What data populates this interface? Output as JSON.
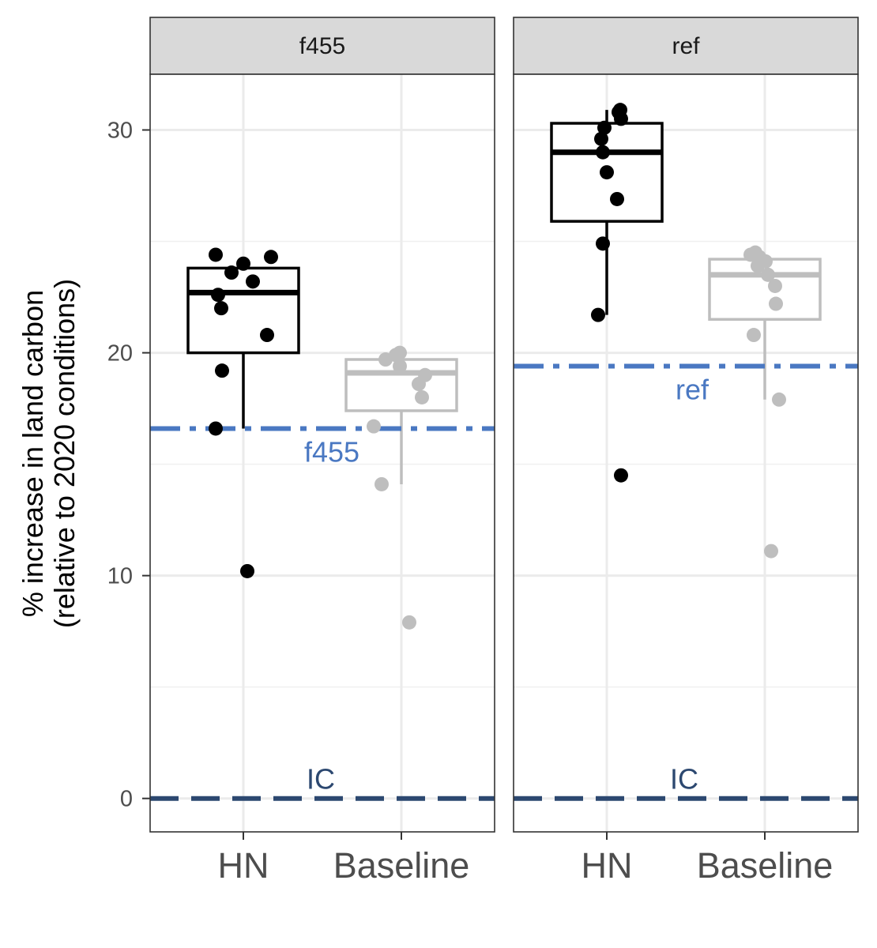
{
  "chart_data": {
    "type": "box",
    "facets": [
      "f455",
      "ref"
    ],
    "categories": [
      "HN",
      "Baseline"
    ],
    "ylabel_line1": "% increase in land carbon",
    "ylabel_line2": "(relative to 2020 conditions)",
    "yticks": [
      0,
      10,
      20,
      30
    ],
    "ylim": [
      -1.5,
      32.5
    ],
    "grid": true,
    "colors": {
      "HN": "#000000",
      "Baseline": "#bebebe",
      "reference_line": "#4a78c2",
      "ic_line": "#2c4870"
    },
    "panels": [
      {
        "facet": "f455",
        "reference": {
          "label": "f455",
          "value": 16.6
        },
        "ic": {
          "label": "IC",
          "value": 0
        },
        "groups": [
          {
            "category": "HN",
            "box": {
              "whisker_low": 16.6,
              "q1": 20.0,
              "median": 22.7,
              "q3": 23.8,
              "whisker_high": 24.3
            },
            "points": [
              24.4,
              24.3,
              24.0,
              23.6,
              23.2,
              22.6,
              22.0,
              20.8,
              19.2,
              16.6,
              10.2
            ],
            "jitter": [
              -0.35,
              0.35,
              0.0,
              -0.15,
              0.12,
              -0.32,
              -0.28,
              0.3,
              -0.27,
              -0.35,
              0.05
            ]
          },
          {
            "category": "Baseline",
            "box": {
              "whisker_low": 14.1,
              "q1": 17.4,
              "median": 19.1,
              "q3": 19.7,
              "whisker_high": 20.0
            },
            "points": [
              20.0,
              19.9,
              19.7,
              19.4,
              19.0,
              18.6,
              18.0,
              16.7,
              14.1,
              7.9
            ],
            "jitter": [
              -0.02,
              -0.07,
              -0.2,
              -0.02,
              0.3,
              0.22,
              0.26,
              -0.35,
              -0.25,
              0.1
            ]
          }
        ]
      },
      {
        "facet": "ref",
        "reference": {
          "label": "ref",
          "value": 19.4
        },
        "ic": {
          "label": "IC",
          "value": 0
        },
        "groups": [
          {
            "category": "HN",
            "box": {
              "whisker_low": 21.7,
              "q1": 25.9,
              "median": 29.0,
              "q3": 30.3,
              "whisker_high": 30.9
            },
            "points": [
              30.9,
              30.8,
              30.5,
              30.1,
              29.6,
              29.0,
              28.1,
              26.9,
              24.9,
              21.7,
              14.5
            ],
            "jitter": [
              0.17,
              0.15,
              0.18,
              -0.03,
              -0.07,
              -0.05,
              0.0,
              0.13,
              -0.05,
              -0.11,
              0.18
            ]
          },
          {
            "category": "Baseline",
            "box": {
              "whisker_low": 17.9,
              "q1": 21.5,
              "median": 23.5,
              "q3": 24.2,
              "whisker_high": 24.4
            },
            "points": [
              24.5,
              24.4,
              24.3,
              24.1,
              23.9,
              23.5,
              23.0,
              22.2,
              20.8,
              17.9,
              11.1
            ],
            "jitter": [
              -0.12,
              -0.18,
              -0.07,
              0.01,
              -0.09,
              0.04,
              0.13,
              0.14,
              -0.14,
              0.18,
              0.08
            ]
          }
        ]
      }
    ]
  }
}
